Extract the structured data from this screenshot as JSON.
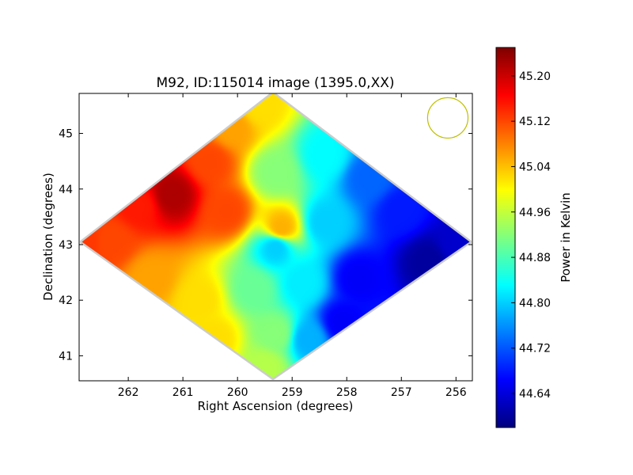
{
  "chart_data": {
    "type": "heatmap",
    "title": "M92, ID:115014 image (1395.0,XX)",
    "xlabel": "Right Ascension (degrees)",
    "ylabel": "Declination (degrees)",
    "xlim": [
      262.9,
      255.7
    ],
    "ylim": [
      40.55,
      45.72
    ],
    "x_ticks": [
      {
        "value": 262,
        "label": "262"
      },
      {
        "value": 261,
        "label": "261"
      },
      {
        "value": 260,
        "label": "260"
      },
      {
        "value": 259,
        "label": "259"
      },
      {
        "value": 258,
        "label": "258"
      },
      {
        "value": 257,
        "label": "257"
      },
      {
        "value": 256,
        "label": "256"
      }
    ],
    "y_ticks": [
      {
        "value": 41,
        "label": "41"
      },
      {
        "value": 42,
        "label": "42"
      },
      {
        "value": 43,
        "label": "43"
      },
      {
        "value": 44,
        "label": "44"
      },
      {
        "value": 45,
        "label": "45"
      }
    ],
    "map_region": {
      "shape": "diamond",
      "corners": {
        "west": {
          "ra": 262.85,
          "dec": 43.05
        },
        "north": {
          "ra": 259.35,
          "dec": 45.72
        },
        "east": {
          "ra": 255.75,
          "dec": 43.05
        },
        "south": {
          "ra": 259.35,
          "dec": 40.6
        }
      }
    },
    "samples": [
      {
        "ra": 262.8,
        "dec": 43.05,
        "value": 45.13
      },
      {
        "ra": 262.3,
        "dec": 43.05,
        "value": 45.12
      },
      {
        "ra": 261.2,
        "dec": 43.9,
        "value": 45.22
      },
      {
        "ra": 261.8,
        "dec": 43.7,
        "value": 45.15
      },
      {
        "ra": 260.5,
        "dec": 44.5,
        "value": 45.12
      },
      {
        "ra": 260.2,
        "dec": 43.6,
        "value": 45.12
      },
      {
        "ra": 260.1,
        "dec": 45.1,
        "value": 45.06
      },
      {
        "ra": 259.6,
        "dec": 45.5,
        "value": 45.02
      },
      {
        "ra": 259.3,
        "dec": 44.3,
        "value": 44.92
      },
      {
        "ra": 259.2,
        "dec": 43.3,
        "value": 45.05
      },
      {
        "ra": 258.4,
        "dec": 44.6,
        "value": 44.83
      },
      {
        "ra": 258.4,
        "dec": 43.4,
        "value": 44.8
      },
      {
        "ra": 257.6,
        "dec": 44.2,
        "value": 44.73
      },
      {
        "ra": 257.0,
        "dec": 43.6,
        "value": 44.68
      },
      {
        "ra": 256.5,
        "dec": 42.7,
        "value": 44.6
      },
      {
        "ra": 256.0,
        "dec": 43.0,
        "value": 44.63
      },
      {
        "ra": 259.3,
        "dec": 42.95,
        "value": 44.8
      },
      {
        "ra": 259.7,
        "dec": 42.2,
        "value": 44.9
      },
      {
        "ra": 259.3,
        "dec": 41.4,
        "value": 44.92
      },
      {
        "ra": 259.5,
        "dec": 40.8,
        "value": 44.95
      },
      {
        "ra": 260.4,
        "dec": 41.3,
        "value": 45.02
      },
      {
        "ra": 260.7,
        "dec": 42.0,
        "value": 45.02
      },
      {
        "ra": 261.6,
        "dec": 42.4,
        "value": 45.06
      },
      {
        "ra": 258.7,
        "dec": 41.3,
        "value": 44.78
      },
      {
        "ra": 258.1,
        "dec": 41.6,
        "value": 44.66
      },
      {
        "ra": 257.8,
        "dec": 42.4,
        "value": 44.66
      },
      {
        "ra": 258.8,
        "dec": 42.3,
        "value": 44.82
      }
    ],
    "beam_circle": {
      "ra": 256.15,
      "dec": 45.28,
      "radius_deg": 0.37,
      "color": "#bfbf00"
    },
    "colorbar": {
      "label": "Power in Kelvin",
      "range": [
        44.58,
        45.25
      ],
      "ticks": [
        {
          "value": 44.64,
          "label": "44.64"
        },
        {
          "value": 44.72,
          "label": "44.72"
        },
        {
          "value": 44.8,
          "label": "44.80"
        },
        {
          "value": 44.88,
          "label": "44.88"
        },
        {
          "value": 44.96,
          "label": "44.96"
        },
        {
          "value": 45.04,
          "label": "45.04"
        },
        {
          "value": 45.12,
          "label": "45.12"
        },
        {
          "value": 45.2,
          "label": "45.20"
        }
      ],
      "colormap": "jet",
      "colormap_stops": [
        "#00007f",
        "#0000ff",
        "#007fff",
        "#00ffff",
        "#7fff7f",
        "#ffff00",
        "#ff7f00",
        "#ff0000",
        "#7f0000"
      ]
    },
    "grid": false,
    "legend": "none"
  }
}
